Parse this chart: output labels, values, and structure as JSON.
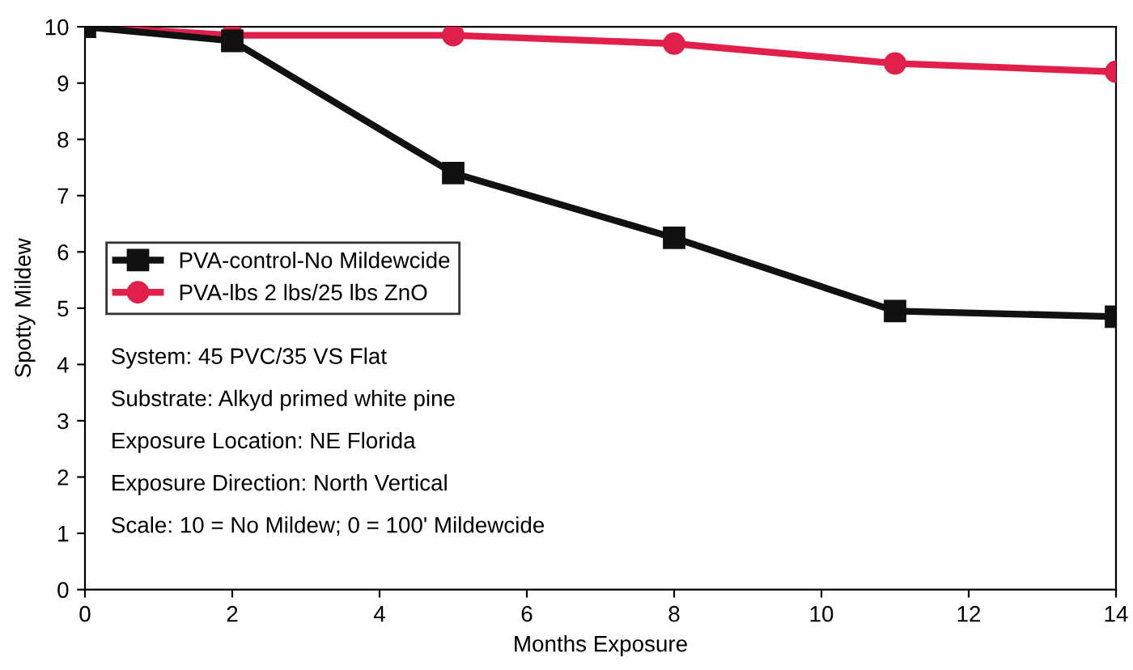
{
  "chart_data": {
    "type": "line",
    "xlabel": "Months Exposure",
    "ylabel": "Spotty Mildew",
    "xlim": [
      0,
      14
    ],
    "xticks": [
      0,
      2,
      4,
      6,
      8,
      10,
      12,
      14
    ],
    "ylim": [
      0,
      10
    ],
    "yticks": [
      0,
      1,
      2,
      3,
      4,
      5,
      6,
      7,
      8,
      9,
      10
    ],
    "series": [
      {
        "name": "PVA-control-No Mildewcide",
        "color": "#111111",
        "marker": "square",
        "x": [
          0,
          2,
          5,
          8,
          11,
          14
        ],
        "values": [
          10,
          9.75,
          7.4,
          6.25,
          4.95,
          4.85
        ]
      },
      {
        "name": "PVA-lbs 2 lbs/25 lbs ZnO",
        "color": "#e0204a",
        "marker": "circle",
        "x": [
          0,
          2,
          5,
          8,
          11,
          14
        ],
        "values": [
          10,
          9.85,
          9.85,
          9.7,
          9.35,
          9.2
        ]
      }
    ],
    "annotations": [
      "System: 45 PVC/35 VS Flat",
      "Substrate: Alkyd primed white pine",
      "Exposure Location: NE Florida",
      "Exposure Direction: North Vertical",
      "Scale: 10 = No Mildew; 0 = 100' Mildewcide"
    ],
    "legend": "left",
    "grid": false,
    "line_style": "solid"
  }
}
